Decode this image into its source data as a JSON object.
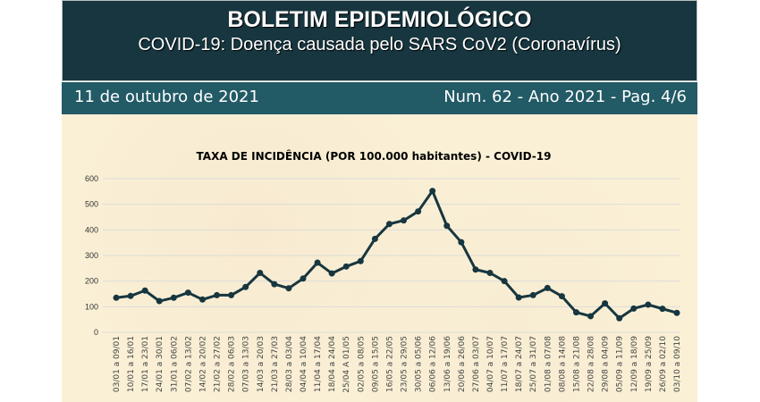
{
  "header": {
    "title": "BOLETIM EPIDEMIOLÓGICO",
    "subtitle": "COVID-19: Doença  causada pelo SARS CoV2 (Coronavírus)",
    "date": "11 de outubro de 2021",
    "issue": "Num. 62 - Ano 2021 - Pag. 4/6"
  },
  "colors": {
    "line": "#17363f",
    "grid": "#dcdcd8"
  },
  "chart_data": {
    "type": "line",
    "title": "TAXA DE INCIDÊNCIA (POR 100.000 habitantes) - COVID-19",
    "xlabel": "",
    "ylabel": "",
    "ylim": [
      0,
      600
    ],
    "yticks": [
      0,
      100,
      200,
      300,
      400,
      500,
      600
    ],
    "grid": true,
    "categories": [
      "03/01 a 09/01",
      "10/01 a 16/01",
      "17/01 a 23/01",
      "24/01 a 30/01",
      "31/01 a 06/02",
      "07/02 a 13/02",
      "14/02 a 20/02",
      "21/02 a 27/02",
      "28/02 a 06/03",
      "07/03 a 13/03",
      "14/03 a 20/03",
      "21/03 a 27/03",
      "28/03 a 03/04",
      "04/04 a 10/04",
      "11/04 a 17/04",
      "18/04 a 24/04",
      "25/04 A 01/05",
      "02/05 a 08/05",
      "09/05 a 15/05",
      "16/05 a 22/05",
      "23/05 a 29/05",
      "30/05 a 05/06",
      "06/06 a 12/06",
      "13/06 a 19/06",
      "20/06 a 26/06",
      "27/06 a 03/07",
      "04/07 a 10/07",
      "11/07 a 17/07",
      "18/07 a 24/07",
      "25/07 a 31/07",
      "01/08 a 07/08",
      "08/08 a 14/08",
      "15/08 a 21/08",
      "22/08 a 28/08",
      "29/08 a 04/09",
      "05/09 a 11/09",
      "12/09 a 18/09",
      "19/09 a 25/09",
      "26/09 a 02/10",
      "03/10 a 09/10"
    ],
    "values": [
      135,
      142,
      163,
      122,
      135,
      155,
      128,
      145,
      145,
      177,
      232,
      188,
      172,
      210,
      272,
      230,
      257,
      278,
      365,
      423,
      437,
      472,
      552,
      416,
      352,
      245,
      232,
      200,
      136,
      145,
      173,
      141,
      78,
      63,
      113,
      55,
      93,
      108,
      92,
      76
    ]
  }
}
